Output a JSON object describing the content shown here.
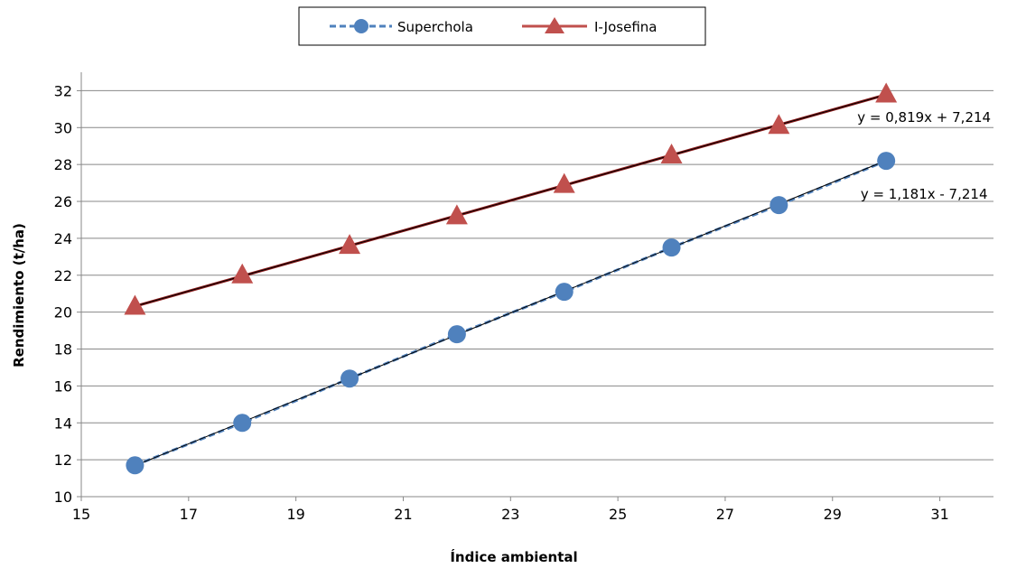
{
  "chart_data": {
    "type": "scatter",
    "xlabel": "Índice ambiental",
    "ylabel": "Rendimiento (t/ha)",
    "xlim": [
      15,
      32
    ],
    "ylim": [
      10,
      33
    ],
    "xticks": [
      15,
      17,
      19,
      21,
      23,
      25,
      27,
      29,
      31
    ],
    "yticks": [
      10,
      12,
      14,
      16,
      18,
      20,
      22,
      24,
      26,
      28,
      30,
      32
    ],
    "grid": "horizontal",
    "legend_position": "top-center",
    "series": [
      {
        "name": "Superchola",
        "marker": "circle",
        "color": "#4F81BD",
        "line_color": "#4F81BD",
        "line_style": "dashed",
        "x": [
          16,
          18,
          20,
          22,
          24,
          26,
          28,
          30
        ],
        "y": [
          11.7,
          14.0,
          16.4,
          18.8,
          21.1,
          23.5,
          25.8,
          28.2
        ],
        "trendline": {
          "slope": 1.181,
          "intercept": -7.214,
          "equation": "y = 1,181x - 7,214"
        }
      },
      {
        "name": "I-Josefina",
        "marker": "triangle",
        "color": "#C0504D",
        "line_color": "#000000",
        "line_style": "solid",
        "x": [
          16,
          18,
          20,
          22,
          24,
          26,
          28,
          30
        ],
        "y": [
          20.3,
          22.0,
          23.6,
          25.2,
          26.9,
          28.5,
          30.1,
          31.8
        ],
        "trendline": {
          "slope": 0.819,
          "intercept": 7.214,
          "equation": "y = 0,819x + 7,214"
        }
      }
    ]
  }
}
